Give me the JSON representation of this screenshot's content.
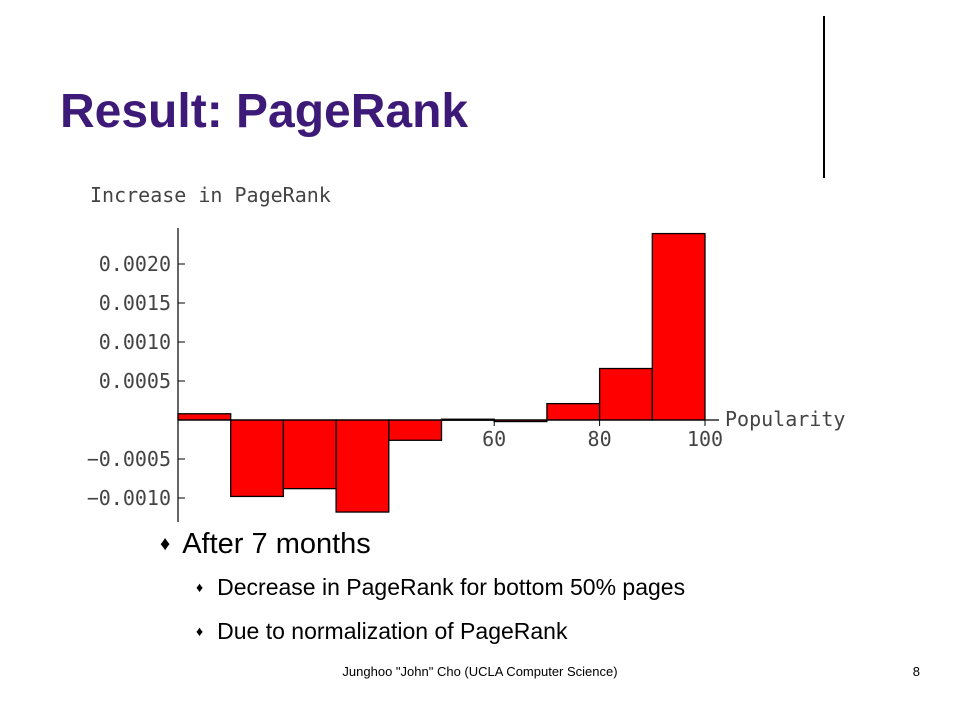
{
  "slide": {
    "title": "Result: PageRank",
    "bullet": "After 7 months",
    "sub_bullets": [
      "Decrease in PageRank for bottom 50% pages",
      "Due to normalization of PageRank"
    ],
    "footer": "Junghoo \"John\" Cho (UCLA Computer Science)",
    "page_number": "8",
    "colors": {
      "title": "#3d1a78",
      "bar_fill": "#ff0000",
      "bar_stroke": "#000000"
    }
  },
  "chart_data": {
    "type": "bar",
    "title": "Increase in PageRank",
    "xlabel": "Popularity",
    "ylabel": "",
    "x": [
      5,
      15,
      25,
      35,
      45,
      55,
      65,
      75,
      85,
      95
    ],
    "bin_width": 10,
    "values": [
      8e-05,
      -0.00098,
      -0.00088,
      -0.00118,
      -0.00026,
      1e-05,
      -2e-05,
      0.00021,
      0.00066,
      0.00239
    ],
    "xlim": [
      0,
      100
    ],
    "ylim": [
      -0.00135,
      0.00245
    ],
    "x_ticks": [
      60,
      80,
      100
    ],
    "x_tick_labels": [
      "60",
      "80",
      "100"
    ],
    "y_ticks": [
      0.002,
      0.0015,
      0.001,
      0.0005,
      -0.0005,
      -0.001
    ],
    "y_tick_labels": [
      "0.0020",
      "0.0015",
      "0.0010",
      "0.0005",
      "−0.0005",
      "−0.0010"
    ],
    "grid": false,
    "legend": "none"
  }
}
